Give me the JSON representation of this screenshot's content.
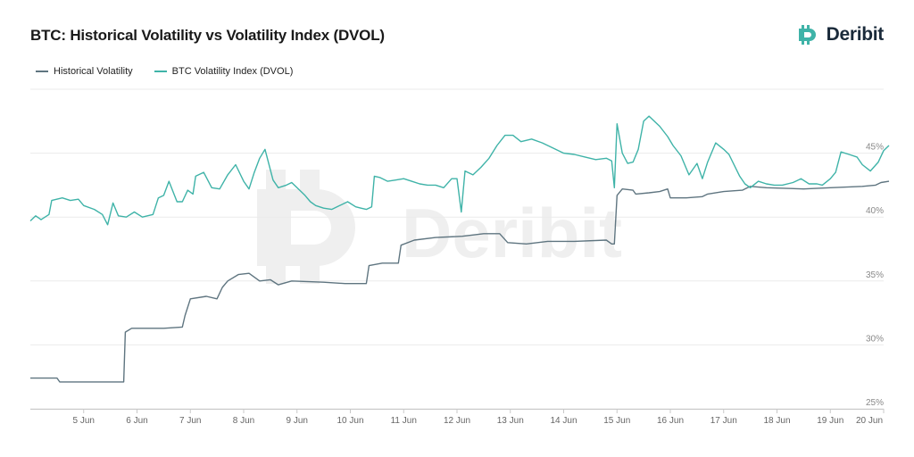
{
  "chart_data": {
    "type": "line",
    "title": "BTC: Historical Volatility vs Volatility Index (DVOL)",
    "brand": "Deribit",
    "watermark": "Deribit",
    "x_tick_labels": [
      "5 Jun",
      "6 Jun",
      "7 Jun",
      "8 Jun",
      "9 Jun",
      "10 Jun",
      "11 Jun",
      "12 Jun",
      "13 Jun",
      "14 Jun",
      "15 Jun",
      "16 Jun",
      "17 Jun",
      "18 Jun",
      "19 Jun",
      "20 Jun"
    ],
    "x_range": [
      4.0,
      20.0
    ],
    "y_tick_labels": [
      "25%",
      "30%",
      "35%",
      "40%",
      "45%"
    ],
    "y_ticks": [
      25,
      30,
      35,
      40,
      45
    ],
    "ylim": [
      25,
      50
    ],
    "grid": true,
    "legend_position": "top-left",
    "series": [
      {
        "name": "Historical Volatility",
        "color": "#5f7580",
        "points": [
          [
            4.0,
            27.4
          ],
          [
            4.5,
            27.4
          ],
          [
            4.55,
            27.1
          ],
          [
            5.4,
            27.1
          ],
          [
            5.75,
            27.1
          ],
          [
            5.78,
            31.0
          ],
          [
            5.9,
            31.3
          ],
          [
            6.5,
            31.3
          ],
          [
            6.85,
            31.4
          ],
          [
            6.9,
            32.3
          ],
          [
            7.0,
            33.6
          ],
          [
            7.3,
            33.8
          ],
          [
            7.5,
            33.6
          ],
          [
            7.6,
            34.5
          ],
          [
            7.7,
            35.0
          ],
          [
            7.9,
            35.5
          ],
          [
            8.1,
            35.6
          ],
          [
            8.3,
            35.0
          ],
          [
            8.5,
            35.1
          ],
          [
            8.65,
            34.7
          ],
          [
            8.9,
            35.0
          ],
          [
            9.5,
            34.9
          ],
          [
            9.9,
            34.8
          ],
          [
            10.3,
            34.8
          ],
          [
            10.35,
            36.2
          ],
          [
            10.6,
            36.4
          ],
          [
            10.9,
            36.4
          ],
          [
            10.95,
            37.8
          ],
          [
            11.2,
            38.2
          ],
          [
            11.6,
            38.4
          ],
          [
            12.1,
            38.5
          ],
          [
            12.5,
            38.7
          ],
          [
            12.8,
            38.7
          ],
          [
            12.95,
            38.0
          ],
          [
            13.3,
            37.9
          ],
          [
            13.7,
            38.1
          ],
          [
            14.2,
            38.1
          ],
          [
            14.8,
            38.2
          ],
          [
            14.9,
            37.9
          ],
          [
            14.95,
            37.9
          ],
          [
            15.0,
            41.7
          ],
          [
            15.1,
            42.2
          ],
          [
            15.3,
            42.1
          ],
          [
            15.35,
            41.8
          ],
          [
            15.6,
            41.9
          ],
          [
            15.8,
            42.0
          ],
          [
            15.95,
            42.2
          ],
          [
            16.0,
            41.5
          ],
          [
            16.3,
            41.5
          ],
          [
            16.6,
            41.6
          ],
          [
            16.7,
            41.8
          ],
          [
            17.0,
            42.0
          ],
          [
            17.35,
            42.1
          ],
          [
            17.5,
            42.4
          ],
          [
            17.8,
            42.3
          ],
          [
            18.5,
            42.2
          ],
          [
            19.0,
            42.3
          ],
          [
            19.6,
            42.4
          ],
          [
            19.85,
            42.5
          ],
          [
            19.95,
            42.7
          ],
          [
            20.1,
            42.8
          ]
        ]
      },
      {
        "name": "BTC Volatility Index (DVOL)",
        "color": "#3fb3a8",
        "points": [
          [
            4.0,
            39.7
          ],
          [
            4.1,
            40.1
          ],
          [
            4.2,
            39.8
          ],
          [
            4.35,
            40.2
          ],
          [
            4.4,
            41.3
          ],
          [
            4.6,
            41.5
          ],
          [
            4.75,
            41.3
          ],
          [
            4.9,
            41.4
          ],
          [
            5.0,
            40.9
          ],
          [
            5.2,
            40.6
          ],
          [
            5.35,
            40.2
          ],
          [
            5.45,
            39.4
          ],
          [
            5.55,
            41.1
          ],
          [
            5.65,
            40.1
          ],
          [
            5.8,
            40.0
          ],
          [
            5.95,
            40.4
          ],
          [
            6.1,
            40.0
          ],
          [
            6.3,
            40.2
          ],
          [
            6.4,
            41.5
          ],
          [
            6.5,
            41.7
          ],
          [
            6.6,
            42.8
          ],
          [
            6.75,
            41.2
          ],
          [
            6.85,
            41.2
          ],
          [
            6.95,
            42.1
          ],
          [
            7.05,
            41.8
          ],
          [
            7.1,
            43.2
          ],
          [
            7.25,
            43.5
          ],
          [
            7.4,
            42.3
          ],
          [
            7.55,
            42.2
          ],
          [
            7.7,
            43.3
          ],
          [
            7.85,
            44.1
          ],
          [
            8.0,
            42.8
          ],
          [
            8.1,
            42.2
          ],
          [
            8.2,
            43.5
          ],
          [
            8.3,
            44.6
          ],
          [
            8.4,
            45.3
          ],
          [
            8.55,
            42.9
          ],
          [
            8.65,
            42.3
          ],
          [
            8.8,
            42.5
          ],
          [
            8.9,
            42.7
          ],
          [
            9.0,
            42.3
          ],
          [
            9.15,
            41.7
          ],
          [
            9.25,
            41.2
          ],
          [
            9.35,
            40.9
          ],
          [
            9.5,
            40.7
          ],
          [
            9.65,
            40.6
          ],
          [
            9.8,
            40.9
          ],
          [
            9.95,
            41.2
          ],
          [
            10.1,
            40.8
          ],
          [
            10.2,
            40.7
          ],
          [
            10.3,
            40.6
          ],
          [
            10.4,
            40.8
          ],
          [
            10.45,
            43.2
          ],
          [
            10.55,
            43.1
          ],
          [
            10.7,
            42.8
          ],
          [
            10.85,
            42.9
          ],
          [
            11.0,
            43.0
          ],
          [
            11.15,
            42.8
          ],
          [
            11.3,
            42.6
          ],
          [
            11.45,
            42.5
          ],
          [
            11.6,
            42.5
          ],
          [
            11.75,
            42.3
          ],
          [
            11.9,
            43.0
          ],
          [
            12.0,
            43.0
          ],
          [
            12.08,
            40.4
          ],
          [
            12.15,
            43.6
          ],
          [
            12.3,
            43.3
          ],
          [
            12.45,
            43.9
          ],
          [
            12.6,
            44.6
          ],
          [
            12.75,
            45.6
          ],
          [
            12.9,
            46.4
          ],
          [
            13.05,
            46.4
          ],
          [
            13.2,
            45.9
          ],
          [
            13.4,
            46.1
          ],
          [
            13.6,
            45.8
          ],
          [
            13.8,
            45.4
          ],
          [
            14.0,
            45.0
          ],
          [
            14.2,
            44.9
          ],
          [
            14.4,
            44.7
          ],
          [
            14.6,
            44.5
          ],
          [
            14.8,
            44.6
          ],
          [
            14.9,
            44.4
          ],
          [
            14.95,
            42.3
          ],
          [
            15.0,
            47.3
          ],
          [
            15.1,
            45.0
          ],
          [
            15.2,
            44.2
          ],
          [
            15.3,
            44.3
          ],
          [
            15.4,
            45.3
          ],
          [
            15.5,
            47.5
          ],
          [
            15.6,
            47.9
          ],
          [
            15.8,
            47.1
          ],
          [
            15.95,
            46.3
          ],
          [
            16.05,
            45.6
          ],
          [
            16.2,
            44.8
          ],
          [
            16.35,
            43.3
          ],
          [
            16.5,
            44.2
          ],
          [
            16.6,
            43.0
          ],
          [
            16.7,
            44.3
          ],
          [
            16.85,
            45.8
          ],
          [
            17.0,
            45.3
          ],
          [
            17.1,
            44.9
          ],
          [
            17.3,
            43.2
          ],
          [
            17.4,
            42.6
          ],
          [
            17.5,
            42.3
          ],
          [
            17.65,
            42.8
          ],
          [
            17.8,
            42.6
          ],
          [
            17.95,
            42.5
          ],
          [
            18.1,
            42.5
          ],
          [
            18.3,
            42.7
          ],
          [
            18.45,
            43.0
          ],
          [
            18.6,
            42.6
          ],
          [
            18.75,
            42.6
          ],
          [
            18.85,
            42.5
          ],
          [
            19.0,
            43.0
          ],
          [
            19.1,
            43.5
          ],
          [
            19.2,
            45.1
          ],
          [
            19.35,
            44.9
          ],
          [
            19.5,
            44.7
          ],
          [
            19.6,
            44.1
          ],
          [
            19.75,
            43.6
          ],
          [
            19.9,
            44.3
          ],
          [
            20.0,
            45.2
          ],
          [
            20.1,
            45.6
          ]
        ]
      }
    ]
  }
}
